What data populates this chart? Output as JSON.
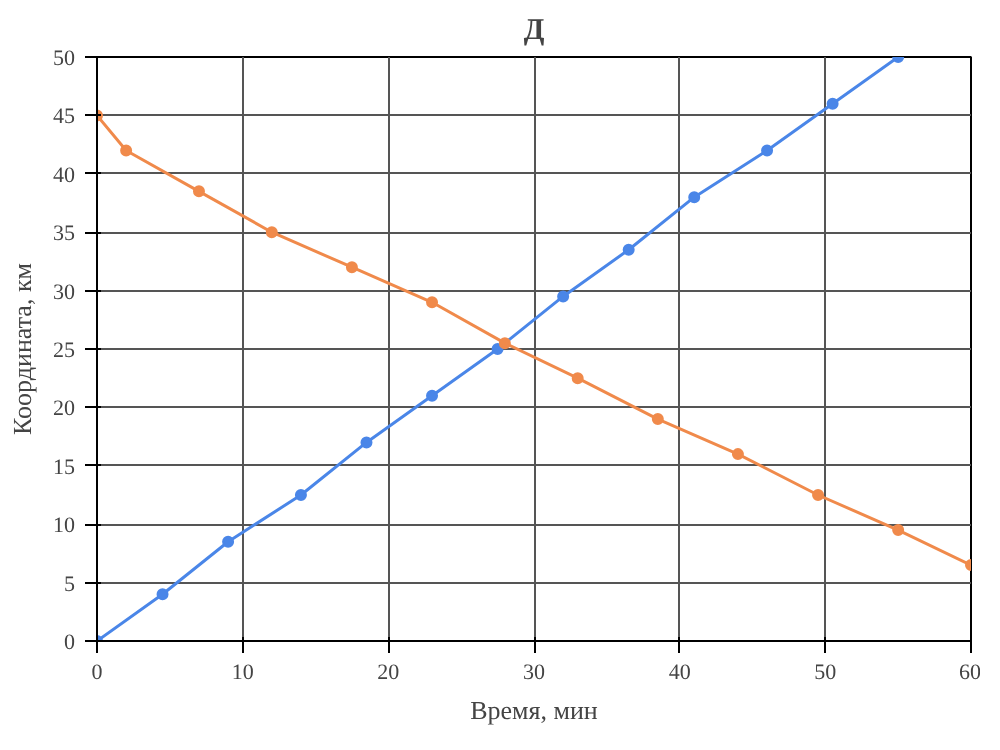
{
  "chart_data": {
    "type": "line",
    "title": "Д",
    "xlabel": "Время, мин",
    "ylabel": "Координата, км",
    "xlim": [
      0,
      60
    ],
    "ylim": [
      0,
      50
    ],
    "xticks": [
      0,
      10,
      20,
      30,
      40,
      50,
      60
    ],
    "yticks": [
      0,
      5,
      10,
      15,
      20,
      25,
      30,
      35,
      40,
      45,
      50
    ],
    "grid": true,
    "marker": "circle",
    "line_style": "solid",
    "series": [
      {
        "color": "#4a86e8",
        "x": [
          0,
          4.5,
          9,
          14,
          18.5,
          23,
          27.5,
          32,
          36.5,
          41,
          46,
          50.5,
          55
        ],
        "values": [
          0,
          4,
          8.5,
          12.5,
          17,
          21,
          25,
          29.5,
          33.5,
          38,
          42,
          46,
          50
        ]
      },
      {
        "color": "#f08a4b",
        "x": [
          0,
          2,
          7,
          12,
          17.5,
          23,
          28,
          33,
          38.5,
          44,
          49.5,
          55,
          60
        ],
        "values": [
          45,
          42,
          38.5,
          35,
          32,
          29,
          25.5,
          22.5,
          19,
          16,
          12.5,
          9.5,
          6.5
        ]
      }
    ]
  }
}
